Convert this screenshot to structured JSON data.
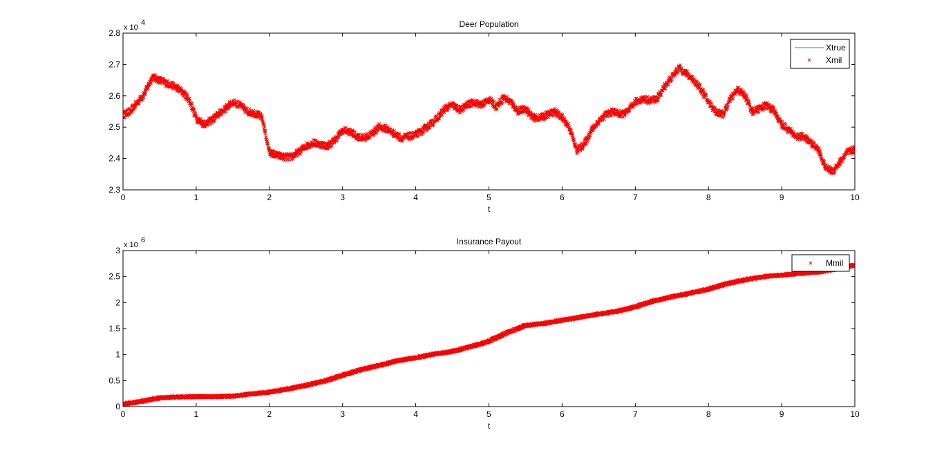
{
  "chart_data": [
    {
      "type": "line",
      "title": "Deer Population",
      "xlabel": "t",
      "ylabel": "",
      "xlim": [
        0,
        10
      ],
      "ylim": [
        23000,
        28000
      ],
      "xticks": [
        "0",
        "1",
        "2",
        "3",
        "4",
        "5",
        "6",
        "7",
        "8",
        "9",
        "10"
      ],
      "yticks": [
        "2.3",
        "2.4",
        "2.5",
        "2.6",
        "2.7",
        "2.8"
      ],
      "y_exponent_base": "x 10",
      "y_exponent": "4",
      "grid": false,
      "legend_position": "top-right",
      "series": [
        {
          "name": "Xtrue",
          "color": "#00c000",
          "marker": "line",
          "x": [
            0,
            0.1,
            0.2,
            0.3,
            0.4,
            0.5,
            0.6,
            0.7,
            0.8,
            0.9,
            1.0,
            1.1,
            1.2,
            1.3,
            1.4,
            1.5,
            1.6,
            1.7,
            1.8,
            1.9,
            2.0,
            2.1,
            2.2,
            2.3,
            2.4,
            2.5,
            2.6,
            2.7,
            2.8,
            2.9,
            3.0,
            3.1,
            3.2,
            3.3,
            3.4,
            3.5,
            3.6,
            3.7,
            3.8,
            3.9,
            4.0,
            4.1,
            4.2,
            4.3,
            4.4,
            4.5,
            4.6,
            4.7,
            4.8,
            4.9,
            5.0,
            5.1,
            5.2,
            5.3,
            5.4,
            5.5,
            5.6,
            5.7,
            5.8,
            5.9,
            6.0,
            6.1,
            6.2,
            6.3,
            6.4,
            6.5,
            6.6,
            6.7,
            6.8,
            6.9,
            7.0,
            7.1,
            7.2,
            7.3,
            7.4,
            7.5,
            7.6,
            7.7,
            7.8,
            7.9,
            8.0,
            8.1,
            8.2,
            8.3,
            8.4,
            8.5,
            8.6,
            8.7,
            8.8,
            8.9,
            9.0,
            9.1,
            9.2,
            9.3,
            9.4,
            9.5,
            9.6,
            9.7,
            9.8,
            9.9,
            10.0
          ],
          "y": [
            25400,
            25500,
            25800,
            26100,
            26600,
            26500,
            26400,
            26300,
            26150,
            25900,
            25300,
            25100,
            25200,
            25400,
            25600,
            25800,
            25700,
            25500,
            25450,
            25300,
            24200,
            24100,
            24050,
            24050,
            24200,
            24400,
            24500,
            24450,
            24400,
            24600,
            24900,
            24850,
            24700,
            24650,
            24800,
            25000,
            24950,
            24800,
            24650,
            24700,
            24750,
            24900,
            25100,
            25300,
            25600,
            25700,
            25550,
            25700,
            25800,
            25700,
            25900,
            25650,
            25950,
            25800,
            25500,
            25600,
            25300,
            25300,
            25400,
            25500,
            25300,
            25000,
            24250,
            24450,
            24900,
            25200,
            25400,
            25500,
            25400,
            25500,
            25800,
            25900,
            25850,
            25900,
            26300,
            26600,
            26900,
            26700,
            26500,
            26200,
            25800,
            25500,
            25400,
            25900,
            26200,
            26000,
            25500,
            25600,
            25700,
            25500,
            25100,
            24900,
            24700,
            24700,
            24500,
            24300,
            23700,
            23600,
            23900,
            24200,
            24300
          ]
        },
        {
          "name": "Xmil",
          "color": "#ff0000",
          "marker": "x"
        }
      ]
    },
    {
      "type": "line",
      "title": "Insurance Payout",
      "xlabel": "t",
      "ylabel": "",
      "xlim": [
        0,
        10
      ],
      "ylim": [
        0,
        3000000
      ],
      "xticks": [
        "0",
        "1",
        "2",
        "3",
        "4",
        "5",
        "6",
        "7",
        "8",
        "9",
        "10"
      ],
      "yticks": [
        "0",
        "0.5",
        "1",
        "1.5",
        "2",
        "2.5",
        "3"
      ],
      "y_exponent_base": "x 10",
      "y_exponent": "6",
      "grid": false,
      "legend_position": "top-right",
      "series": [
        {
          "name": "Mmil",
          "color": "#ff0000",
          "marker": "x",
          "x": [
            0,
            0.25,
            0.5,
            0.75,
            1.0,
            1.25,
            1.5,
            1.75,
            2.0,
            2.25,
            2.5,
            2.75,
            3.0,
            3.25,
            3.5,
            3.75,
            4.0,
            4.25,
            4.5,
            4.75,
            5.0,
            5.25,
            5.5,
            5.75,
            6.0,
            6.25,
            6.5,
            6.75,
            7.0,
            7.25,
            7.5,
            7.75,
            8.0,
            8.25,
            8.5,
            8.75,
            9.0,
            9.25,
            9.5,
            9.75,
            10.0
          ],
          "y": [
            50000,
            100000,
            170000,
            185000,
            190000,
            192000,
            200000,
            240000,
            280000,
            340000,
            410000,
            490000,
            600000,
            710000,
            790000,
            880000,
            940000,
            1010000,
            1060000,
            1150000,
            1260000,
            1420000,
            1560000,
            1600000,
            1660000,
            1720000,
            1780000,
            1830000,
            1920000,
            2030000,
            2110000,
            2180000,
            2260000,
            2360000,
            2440000,
            2500000,
            2530000,
            2560000,
            2590000,
            2650000,
            2720000
          ]
        }
      ]
    }
  ]
}
